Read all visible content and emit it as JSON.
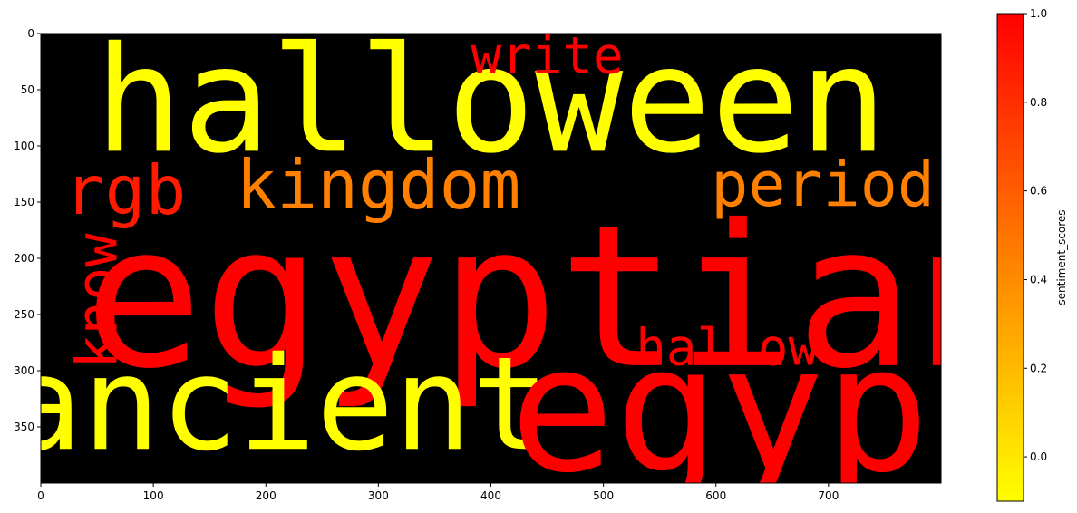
{
  "chart_data": {
    "type": "wordcloud",
    "image_extent": {
      "x": [
        0,
        800
      ],
      "y": [
        400,
        0
      ]
    },
    "x_ticks": [
      0,
      100,
      200,
      300,
      400,
      500,
      600,
      700
    ],
    "y_ticks": [
      0,
      50,
      100,
      150,
      200,
      250,
      300,
      350
    ],
    "background_color": "#000000",
    "colormap": "autumn_r",
    "words": [
      {
        "text": "halloween",
        "x": 400,
        "y": 60,
        "size": 130,
        "vertical": false,
        "color": "#ffff00"
      },
      {
        "text": "egyptian",
        "x": 460,
        "y": 235,
        "size": 175,
        "vertical": false,
        "color": "#ff0000"
      },
      {
        "text": "ancient",
        "x": 210,
        "y": 330,
        "size": 115,
        "vertical": false,
        "color": "#ffff00"
      },
      {
        "text": "egypt",
        "x": 650,
        "y": 335,
        "size": 155,
        "vertical": false,
        "color": "#ff0000"
      },
      {
        "text": "kingdom",
        "x": 300,
        "y": 135,
        "size": 60,
        "vertical": false,
        "color": "#ff7f00"
      },
      {
        "text": "period",
        "x": 695,
        "y": 135,
        "size": 55,
        "vertical": false,
        "color": "#ff7f00"
      },
      {
        "text": "rgb",
        "x": 75,
        "y": 140,
        "size": 60,
        "vertical": false,
        "color": "#ff1a00"
      },
      {
        "text": "write",
        "x": 450,
        "y": 20,
        "size": 45,
        "vertical": false,
        "color": "#ff0000"
      },
      {
        "text": "hallow",
        "x": 610,
        "y": 280,
        "size": 45,
        "vertical": false,
        "color": "#ff0000"
      },
      {
        "text": "know",
        "x": 50,
        "y": 238,
        "size": 50,
        "vertical": true,
        "color": "#ff0000"
      }
    ],
    "colorbar": {
      "label": "sentiment_scores",
      "range": [
        -0.1,
        1.0
      ],
      "ticks": [
        -0.0,
        0.2,
        0.4,
        0.6,
        0.8,
        1.0
      ],
      "tick_labels": [
        "0.0",
        "0.2",
        "0.4",
        "0.6",
        "0.8",
        "1.0"
      ],
      "color_low": "#ffff00",
      "color_high": "#ff0000"
    }
  }
}
